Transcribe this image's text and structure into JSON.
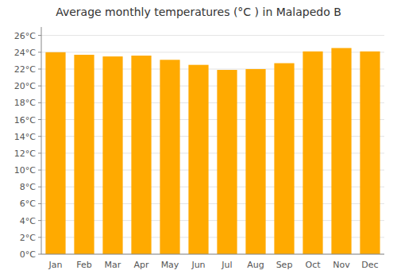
{
  "chart_data": {
    "type": "bar",
    "title": "Average monthly temperatures (°C ) in Malapedo B",
    "categories": [
      "Jan",
      "Feb",
      "Mar",
      "Apr",
      "May",
      "Jun",
      "Jul",
      "Aug",
      "Sep",
      "Oct",
      "Nov",
      "Dec"
    ],
    "values": [
      24.0,
      23.7,
      23.5,
      23.6,
      23.1,
      22.5,
      21.9,
      22.0,
      22.7,
      24.1,
      24.5,
      24.1
    ],
    "color": "#FFAA00",
    "ylim": [
      0,
      27
    ],
    "yticks": [
      {
        "value": 0,
        "label": "0°C"
      },
      {
        "value": 2,
        "label": "2°C"
      },
      {
        "value": 4,
        "label": "4°C"
      },
      {
        "value": 6,
        "label": "6°C"
      },
      {
        "value": 8,
        "label": "8°C"
      },
      {
        "value": 10,
        "label": "10°C"
      },
      {
        "value": 12,
        "label": "12°C"
      },
      {
        "value": 14,
        "label": "14°C"
      },
      {
        "value": 16,
        "label": "16°C"
      },
      {
        "value": 18,
        "label": "18°C"
      },
      {
        "value": 20,
        "label": "20°C"
      },
      {
        "value": 22,
        "label": "22°C"
      },
      {
        "value": 24,
        "label": "24°C"
      },
      {
        "value": 26,
        "label": "26°C"
      }
    ],
    "grid": true
  }
}
